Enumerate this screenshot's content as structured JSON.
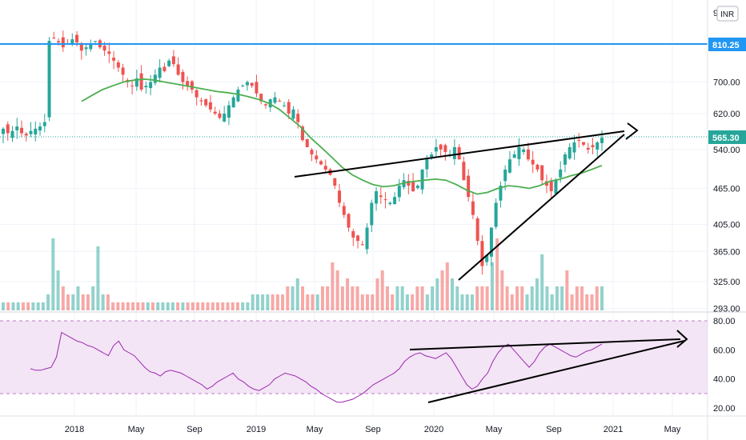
{
  "currency_badge": "INR",
  "chart_data": [
    {
      "type": "candlestick",
      "title": "",
      "x_ticks": [
        "2018",
        "May",
        "Sep",
        "2019",
        "May",
        "Sep",
        "2020",
        "May",
        "Sep",
        "2021",
        "May"
      ],
      "y_ticks": [
        "700.00",
        "620.00",
        "540.00",
        "465.00",
        "405.00",
        "365.00",
        "325.00",
        "293.00"
      ],
      "y_top_partial": "9",
      "price_levels": {
        "horizontal_line": {
          "label": "810.25",
          "value": 810.25
        },
        "last_price": {
          "label": "565.30",
          "value": 565.3
        }
      },
      "ylim": [
        285,
        960
      ],
      "scale": "log",
      "moving_average_color": "#4caf50",
      "up_color": "#26a69a",
      "down_color": "#ef5350",
      "horizontal_line_color": "#2196f3",
      "closes_weekly_approx": [
        585,
        575,
        580,
        590,
        575,
        570,
        580,
        585,
        590,
        600,
        820,
        830,
        815,
        800,
        810,
        825,
        815,
        790,
        800,
        810,
        820,
        800,
        790,
        780,
        760,
        740,
        720,
        700,
        690,
        710,
        680,
        690,
        700,
        720,
        740,
        730,
        760,
        750,
        720,
        700,
        690,
        680,
        660,
        650,
        640,
        630,
        620,
        610,
        620,
        640,
        660,
        680,
        690,
        700,
        690,
        670,
        650,
        640,
        655,
        660,
        650,
        640,
        620,
        630,
        600,
        560,
        545,
        530,
        520,
        510,
        500,
        490,
        470,
        440,
        420,
        400,
        385,
        380,
        375,
        400,
        440,
        460,
        450,
        445,
        440,
        450,
        470,
        480,
        470,
        460,
        470,
        500,
        520,
        530,
        545,
        540,
        535,
        530,
        545,
        520,
        480,
        450,
        420,
        380,
        345,
        360,
        400,
        440,
        470,
        500,
        520,
        530,
        545,
        540,
        520,
        510,
        500,
        480,
        470,
        460,
        480,
        500,
        530,
        545,
        555,
        560,
        550,
        540,
        545,
        555,
        565
      ],
      "moving_average_approx": [
        650,
        665,
        680,
        690,
        700,
        705,
        708,
        705,
        700,
        695,
        690,
        685,
        680,
        675,
        672,
        668,
        662,
        655,
        645,
        630,
        610,
        590,
        565,
        545,
        525,
        505,
        490,
        480,
        472,
        468,
        470,
        475,
        478,
        480,
        482,
        480,
        472,
        462,
        455,
        458,
        465,
        470,
        468,
        465,
        470,
        478,
        482,
        488,
        493,
        500,
        508
      ],
      "volume_relative": [
        1,
        1,
        1,
        1,
        1,
        1,
        1,
        1,
        1,
        2,
        9,
        5,
        3,
        2,
        2,
        3,
        2,
        2,
        3,
        8,
        2,
        2,
        1,
        1,
        1,
        1,
        1,
        1,
        1,
        1,
        1,
        1,
        1,
        1,
        1,
        1,
        1,
        1,
        1,
        1,
        1,
        1,
        1,
        1,
        1,
        1,
        1,
        1,
        1,
        1,
        2,
        2,
        2,
        2,
        2,
        2,
        2,
        3,
        3,
        4,
        3,
        2,
        2,
        2,
        3,
        3,
        6,
        5,
        3,
        4,
        3,
        3,
        2,
        2,
        2,
        4,
        5,
        3,
        2,
        3,
        3,
        2,
        2,
        3,
        3,
        2,
        3,
        4,
        5,
        6,
        4,
        3,
        2,
        2,
        2,
        3,
        3,
        3,
        6,
        9,
        5,
        3,
        2,
        3,
        3,
        2,
        3,
        4,
        7,
        3,
        2,
        3,
        3,
        5,
        2,
        3,
        3,
        2,
        2,
        3,
        3
      ],
      "trendlines": [
        "upper_resistance",
        "lower_support"
      ]
    },
    {
      "type": "line",
      "title": "",
      "y_ticks": [
        "80.00",
        "60.00",
        "40.00",
        "20.00"
      ],
      "ylim": [
        14,
        84
      ],
      "bands": [
        30,
        80
      ],
      "series_color": "#9c27b0",
      "band_fill": "#f3e5f5",
      "values_approx": [
        47,
        46,
        46,
        47,
        48,
        55,
        72,
        70,
        68,
        66,
        65,
        63,
        62,
        60,
        58,
        56,
        63,
        66,
        60,
        58,
        56,
        52,
        48,
        45,
        44,
        42,
        45,
        46,
        45,
        44,
        42,
        40,
        38,
        36,
        33,
        35,
        38,
        40,
        42,
        44,
        40,
        38,
        35,
        33,
        32,
        34,
        36,
        40,
        42,
        44,
        43,
        42,
        40,
        38,
        35,
        33,
        30,
        28,
        26,
        24,
        24,
        25,
        26,
        28,
        30,
        33,
        36,
        38,
        40,
        42,
        44,
        47,
        52,
        55,
        57,
        58,
        56,
        55,
        54,
        56,
        58,
        54,
        48,
        42,
        36,
        33,
        35,
        40,
        44,
        52,
        58,
        62,
        64,
        60,
        56,
        52,
        48,
        52,
        58,
        62,
        64,
        62,
        60,
        58,
        56,
        55,
        57,
        59,
        60,
        62,
        64
      ],
      "trendlines": [
        "upper_resistance",
        "lower_support"
      ]
    }
  ]
}
